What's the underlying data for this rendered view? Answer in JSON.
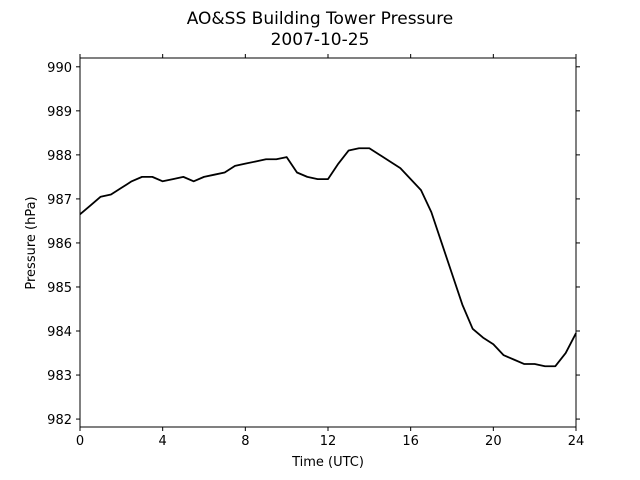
{
  "chart_data": {
    "type": "line",
    "title": "AO&SS Building Tower Pressure",
    "subtitle": "2007-10-25",
    "x_label": "Time (UTC)",
    "y_label": "Pressure (hPa)",
    "x": [
      0,
      0.5,
      1,
      1.5,
      2,
      2.5,
      3,
      3.5,
      4,
      4.5,
      5,
      5.5,
      6,
      6.5,
      7,
      7.5,
      8,
      8.5,
      9,
      9.5,
      10,
      10.5,
      11,
      11.5,
      12,
      12.5,
      13,
      13.5,
      14,
      14.5,
      15,
      15.5,
      16,
      16.5,
      17,
      17.5,
      18,
      18.5,
      19,
      19.5,
      20,
      20.5,
      21,
      21.5,
      22,
      22.5,
      23,
      23.5,
      24
    ],
    "series": [
      {
        "name": "Pressure",
        "color": "#000000",
        "values": [
          986.65,
          986.85,
          987.05,
          987.1,
          987.25,
          987.4,
          987.5,
          987.5,
          987.4,
          987.45,
          987.5,
          987.4,
          987.5,
          987.55,
          987.6,
          987.75,
          987.8,
          987.85,
          987.9,
          987.9,
          987.95,
          987.6,
          987.5,
          987.45,
          987.45,
          987.8,
          988.1,
          988.15,
          988.15,
          988.0,
          987.85,
          987.7,
          987.45,
          987.2,
          986.7,
          986.0,
          985.3,
          984.6,
          984.05,
          983.85,
          983.7,
          983.45,
          983.35,
          983.25,
          983.25,
          983.2,
          983.2,
          983.5,
          983.95
        ]
      }
    ],
    "xlim": [
      0,
      24
    ],
    "xticks": [
      0,
      4,
      8,
      12,
      16,
      20,
      24
    ],
    "ylim": [
      981.82,
      990.2
    ],
    "yticks": [
      982,
      983,
      984,
      985,
      986,
      987,
      988,
      989,
      990
    ],
    "grid": false
  }
}
